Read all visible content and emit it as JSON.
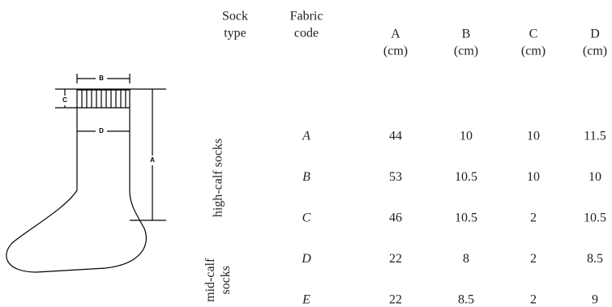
{
  "diagram": {
    "labels": [
      "B",
      "C",
      "D",
      "A"
    ]
  },
  "table": {
    "headers": [
      [
        "Sock",
        "type"
      ],
      [
        "Fabric",
        "code"
      ],
      [
        "A",
        "(cm)"
      ],
      [
        "B",
        "(cm)"
      ],
      [
        "C",
        "(cm)"
      ],
      [
        "D",
        "(cm)"
      ]
    ],
    "groups": [
      {
        "label": [
          "high-calf socks"
        ],
        "rows": [
          {
            "code": "A",
            "values": [
              44,
              10,
              10,
              11.5
            ]
          },
          {
            "code": "B",
            "values": [
              53,
              10.5,
              10,
              10
            ]
          },
          {
            "code": "C",
            "values": [
              46,
              10.5,
              2,
              10.5
            ]
          }
        ]
      },
      {
        "label": [
          "mid-calf",
          "socks"
        ],
        "rows": [
          {
            "code": "D",
            "values": [
              22,
              8,
              2,
              8.5
            ]
          },
          {
            "code": "E",
            "values": [
              22,
              8.5,
              2,
              9
            ]
          }
        ]
      }
    ]
  }
}
